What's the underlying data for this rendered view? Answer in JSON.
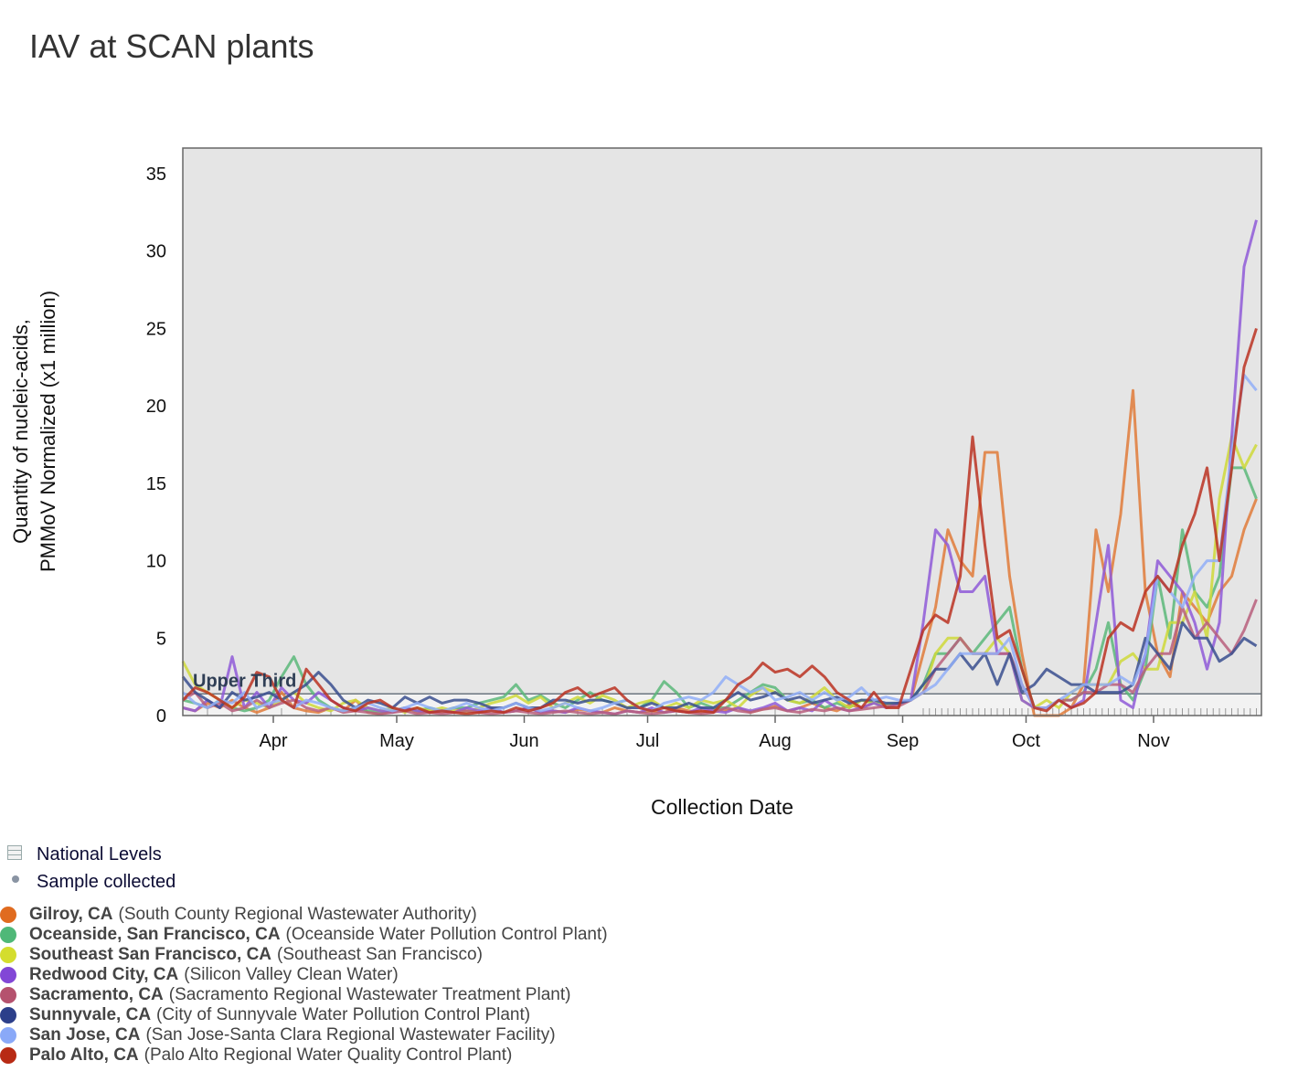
{
  "title": "IAV at SCAN plants",
  "legend": {
    "national_levels": "National Levels",
    "sample_collected": "Sample collected"
  },
  "chart_data": {
    "type": "line",
    "title": "IAV at SCAN plants",
    "xlabel": "Collection Date",
    "ylabel_lines": [
      "Quantity of nucleic-acids,",
      "PMMoV Normalized (x1 million)"
    ],
    "ylim": [
      0,
      36
    ],
    "yticks": [
      0,
      5,
      10,
      15,
      20,
      25,
      30,
      35
    ],
    "x_start_day_of_year": 69,
    "x_step_days": 3,
    "x_range_days": [
      0,
      263
    ],
    "xticks": [
      {
        "label": "Apr",
        "day": 22
      },
      {
        "label": "May",
        "day": 52
      },
      {
        "label": "Jun",
        "day": 83
      },
      {
        "label": "Jul",
        "day": 113
      },
      {
        "label": "Aug",
        "day": 144
      },
      {
        "label": "Sep",
        "day": 175
      },
      {
        "label": "Oct",
        "day": 205
      },
      {
        "label": "Nov",
        "day": 236
      }
    ],
    "grid": false,
    "national_level": {
      "label": "Upper Third",
      "value": 1.4
    },
    "series": [
      {
        "name": "Gilroy, CA",
        "facility": "(South County Regional Wastewater Authority)",
        "color": "#e07b39",
        "dot": "#e06b1f",
        "values": [
          0.5,
          0.3,
          0.8,
          0.5,
          1,
          0.5,
          0.2,
          0.5,
          1.5,
          0.5,
          0.3,
          0.2,
          0.5,
          0.3,
          1,
          0.2,
          0.1,
          0.3,
          0.5,
          0.2,
          0.3,
          0.2,
          0.5,
          0.3,
          0.2,
          0.4,
          0.2,
          0.3,
          0.5,
          0.2,
          0.3,
          0.2,
          0.4,
          0.3,
          0.2,
          0.5,
          0.3,
          0.2,
          0.3,
          0.2,
          0.5,
          0.3,
          0.2,
          0.4,
          0.3,
          0.5,
          0.2,
          0.4,
          0.6,
          0.3,
          0.5,
          0.8,
          0.5,
          0.3,
          0.7,
          0.5,
          0.8,
          0.6,
          0.8,
          1,
          4,
          7,
          12,
          10,
          9,
          17,
          17,
          9,
          4,
          0,
          0,
          0,
          0.5,
          2,
          12,
          8,
          13,
          21,
          8,
          4,
          2.5,
          8,
          7,
          6,
          8,
          9,
          12,
          14
        ]
      },
      {
        "name": "Oceanside, San Francisco, CA",
        "facility": "(Oceanside Water Pollution Control Plant)",
        "color": "#5cb87a",
        "dot": "#4fb878",
        "values": [
          1,
          0.8,
          0.5,
          1,
          0.5,
          0.3,
          0.5,
          1,
          2.5,
          3.8,
          2,
          1,
          0.5,
          0.3,
          0.5,
          0.3,
          0.2,
          0.3,
          0.5,
          0.3,
          0.5,
          0.3,
          0.5,
          0.5,
          0.8,
          1,
          1.2,
          2,
          1,
          1.3,
          0.8,
          0.5,
          1,
          1.5,
          1,
          0.8,
          1,
          0.5,
          1,
          2.2,
          1.5,
          0.5,
          0.8,
          0.5,
          0.5,
          1,
          1.5,
          2,
          1.8,
          1,
          0.8,
          1,
          0.5,
          0.8,
          0.5,
          1,
          0.8,
          0.7,
          0.8,
          1,
          2,
          4,
          4,
          5,
          4,
          5,
          6,
          7,
          3,
          0.5,
          0.5,
          1,
          1,
          1.5,
          3,
          6,
          2,
          1,
          3,
          9,
          5,
          12,
          8,
          7,
          9,
          16,
          16,
          14
        ]
      },
      {
        "name": "Southeast San Francisco, CA",
        "facility": "(Southeast San Francisco)",
        "color": "#cfd93a",
        "dot": "#d4dd2e",
        "values": [
          3.5,
          2,
          1.5,
          1,
          0.5,
          1,
          0.8,
          0.5,
          1,
          1.5,
          0.8,
          0.5,
          0.3,
          0.8,
          1,
          0.5,
          0.3,
          0.5,
          0.2,
          0.5,
          0.3,
          0.5,
          0.3,
          0.2,
          0.5,
          0.8,
          1,
          1.3,
          0.8,
          1.2,
          0.5,
          0.8,
          1.2,
          0.8,
          1.3,
          1,
          0.5,
          0.8,
          1,
          0.5,
          0.8,
          0.5,
          1,
          0.8,
          1,
          0.5,
          1.3,
          1.8,
          1.5,
          1,
          0.8,
          1.2,
          1.8,
          1,
          0.5,
          1,
          0.8,
          0.6,
          0.8,
          1,
          1.5,
          4,
          5,
          5,
          4,
          4,
          5,
          4,
          1,
          0.5,
          1,
          0.5,
          1.5,
          2,
          2,
          2,
          3.5,
          4,
          3,
          3,
          6,
          6,
          8,
          5,
          14,
          18,
          16,
          17.5
        ]
      },
      {
        "name": "Redwood City, CA",
        "facility": "(Silicon Valley Clean Water)",
        "color": "#8f5ad8",
        "dot": "#8247d6",
        "values": [
          0.5,
          0.3,
          1,
          0.5,
          3.8,
          0.5,
          1.5,
          0.5,
          1.8,
          1,
          0.8,
          1.5,
          1,
          0.5,
          0.3,
          0.5,
          0.3,
          0.2,
          0.5,
          0.3,
          0.2,
          0.3,
          0.2,
          0.5,
          0.3,
          0.5,
          0.2,
          0.3,
          0.5,
          0.2,
          0.3,
          0.2,
          0.5,
          0.3,
          0.2,
          0.1,
          0.3,
          0.2,
          0.5,
          0.2,
          0.3,
          0.2,
          0.5,
          0.3,
          0.2,
          0.5,
          0.3,
          0.5,
          0.8,
          0.3,
          0.5,
          0.3,
          1,
          0.5,
          0.3,
          0.5,
          0.8,
          0.5,
          0.8,
          1,
          6,
          12,
          11,
          8,
          8,
          9,
          4,
          4,
          1,
          0.5,
          0.5,
          1,
          0.5,
          1,
          6,
          11,
          1,
          0.5,
          4,
          10,
          9,
          8,
          6,
          3,
          6,
          18,
          29,
          32
        ]
      },
      {
        "name": "Sacramento, CA",
        "facility": "(Sacramento Regional Wastewater Treatment Plant)",
        "color": "#b85f7c",
        "dot": "#b5526e",
        "values": [
          1,
          1.5,
          0.5,
          0.8,
          0.3,
          0.5,
          1,
          0.5,
          0.8,
          1,
          0.5,
          0.3,
          0.5,
          0.2,
          0.3,
          0.2,
          0.1,
          0.2,
          0.3,
          0.1,
          0.2,
          0.1,
          0.2,
          0.3,
          0.2,
          0.1,
          0.2,
          0.3,
          0.2,
          0.1,
          0.2,
          0.3,
          0.2,
          0.1,
          0.2,
          0.1,
          0.3,
          0.2,
          0.1,
          0.2,
          0.3,
          0.2,
          0.1,
          0.2,
          0.5,
          0.3,
          0.2,
          0.4,
          0.5,
          0.3,
          0.2,
          0.4,
          0.3,
          0.5,
          0.3,
          0.4,
          0.5,
          0.6,
          0.6,
          1,
          1.5,
          3,
          4,
          5,
          4,
          4,
          4,
          4,
          2,
          0.5,
          0.5,
          1,
          1,
          1.5,
          1.5,
          2,
          2,
          1.5,
          3,
          4,
          4,
          7,
          5,
          6,
          5,
          4,
          5.5,
          7.5
        ]
      },
      {
        "name": "Sunnyvale, CA",
        "facility": "(City of Sunnyvale Water Pollution Control Plant)",
        "color": "#3a4f8f",
        "dot": "#2c3f8a",
        "values": [
          2.5,
          1.5,
          1,
          0.5,
          1.5,
          1,
          1.2,
          1.5,
          1,
          1.5,
          2,
          2.8,
          2,
          1,
          0.5,
          1,
          0.8,
          0.5,
          1.2,
          0.8,
          1.2,
          0.8,
          1,
          1,
          0.8,
          0.5,
          0.5,
          0.8,
          0.5,
          0.5,
          1,
          1,
          0.8,
          1,
          1,
          0.8,
          0.5,
          0.5,
          0.8,
          0.5,
          0.5,
          0.8,
          0.5,
          0.5,
          1,
          1.5,
          1,
          1.2,
          1.5,
          1,
          1.2,
          0.8,
          1,
          1.2,
          0.8,
          1,
          1,
          0.8,
          0.8,
          1,
          2,
          3,
          3,
          4,
          3,
          4,
          2,
          4,
          1.5,
          2,
          3,
          2.5,
          2,
          2,
          1.5,
          1.5,
          1.5,
          2,
          5,
          4,
          3,
          6,
          5,
          5,
          3.5,
          4,
          5,
          4.5
        ]
      },
      {
        "name": "San Jose, CA",
        "facility": "(San Jose-Santa Clara Regional Wastewater Facility)",
        "color": "#92aff8",
        "dot": "#8aa9f8",
        "values": [
          1.5,
          0.8,
          0.5,
          1,
          0.8,
          1.5,
          0.5,
          0.8,
          1,
          0.5,
          1,
          0.8,
          0.5,
          0.3,
          0.5,
          0.8,
          0.5,
          0.3,
          0.5,
          0.8,
          0.5,
          0.3,
          0.5,
          0.8,
          0.5,
          0.3,
          0.5,
          0.8,
          0.5,
          0.3,
          0.5,
          0.8,
          0.5,
          0.3,
          0.5,
          0.8,
          1,
          0.5,
          0.3,
          0.8,
          1,
          1.2,
          1,
          1.5,
          2.5,
          2,
          1.5,
          1.8,
          1,
          1.2,
          1.5,
          1,
          1.5,
          1,
          1.2,
          1.8,
          1,
          1.2,
          1,
          1,
          1.5,
          2,
          3,
          4,
          4,
          4,
          4,
          5,
          2,
          0.5,
          0.5,
          1,
          1.5,
          2,
          2,
          2,
          2.5,
          2,
          4,
          9,
          8,
          7,
          9,
          10,
          10,
          17,
          22,
          21
        ]
      },
      {
        "name": "Palo Alto, CA",
        "facility": "(Palo Alto Regional Water Quality Control Plant)",
        "color": "#bb3322",
        "dot": "#b82a14",
        "values": [
          1,
          1.8,
          1.5,
          1,
          0.5,
          1.2,
          2.8,
          2.5,
          1,
          0.5,
          3,
          2,
          1,
          0.5,
          0.3,
          0.8,
          1,
          0.5,
          0.3,
          0.5,
          0.2,
          0.3,
          0.2,
          0.1,
          0.2,
          0.3,
          0.2,
          0.5,
          0.3,
          0.5,
          0.8,
          1.5,
          1.8,
          1.2,
          1.5,
          1.8,
          1,
          0.5,
          0.3,
          0.5,
          0.3,
          0.2,
          0.3,
          0.2,
          1,
          2,
          2.5,
          3.4,
          2.8,
          3,
          2.5,
          3.2,
          2.5,
          1.5,
          1,
          0.5,
          1.5,
          0.5,
          0.5,
          3,
          5.5,
          6.5,
          6,
          9,
          18,
          11,
          5,
          5.5,
          3,
          0.5,
          0.3,
          1,
          0.5,
          0.8,
          1.5,
          5,
          6,
          5.5,
          8,
          9,
          8,
          11,
          13,
          16,
          10,
          16,
          22.5,
          25
        ]
      }
    ]
  }
}
